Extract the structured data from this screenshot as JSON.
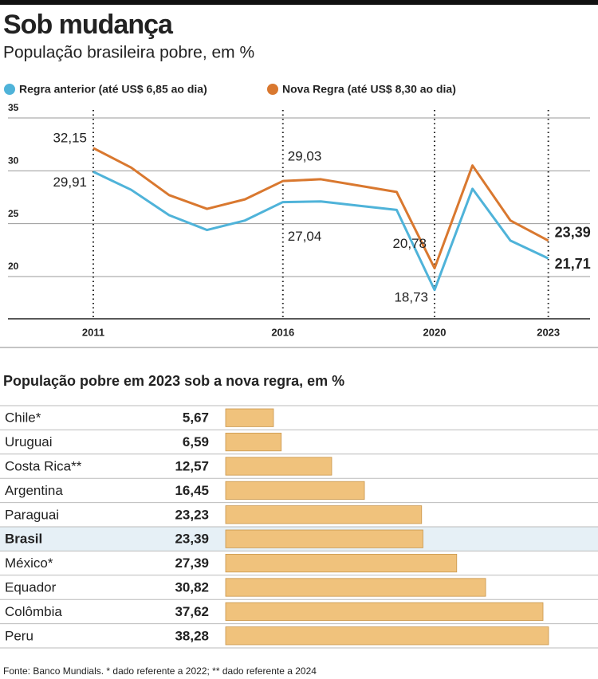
{
  "chart_data": [
    {
      "type": "line",
      "title": "Sob mudança",
      "subtitle": "População brasileira pobre, em %",
      "x": [
        2011,
        2012,
        2013,
        2014,
        2015,
        2016,
        2017,
        2018,
        2019,
        2020,
        2021,
        2022,
        2023
      ],
      "xlim": [
        2008.75,
        2024.1
      ],
      "xticks": [
        2011,
        2016,
        2020,
        2023
      ],
      "ylim": [
        16,
        35
      ],
      "yticks": [
        35,
        30,
        25,
        20
      ],
      "grid": true,
      "series": [
        {
          "name": "Regra anterior (até US$ 6,85 ao dia)",
          "color": "#4fb3d9",
          "values": [
            29.91,
            28.2,
            25.8,
            24.4,
            25.3,
            27.04,
            27.1,
            26.7,
            26.3,
            18.73,
            28.3,
            23.4,
            21.71
          ],
          "value_labels": [
            "29,91",
            null,
            null,
            null,
            null,
            "27,04",
            null,
            null,
            null,
            "18,73",
            null,
            null,
            "21,71"
          ]
        },
        {
          "name": "Nova Regra (até US$ 8,30 ao dia)",
          "color": "#d9782f",
          "values": [
            32.15,
            30.3,
            27.7,
            26.4,
            27.3,
            29.03,
            29.2,
            28.6,
            28.0,
            20.78,
            30.5,
            25.3,
            23.39
          ],
          "value_labels": [
            "32,15",
            null,
            null,
            null,
            null,
            "29,03",
            null,
            null,
            null,
            "20,78",
            null,
            null,
            "23,39"
          ]
        }
      ]
    },
    {
      "type": "hbar",
      "title": "População pobre em 2023 sob a nova regra, em %",
      "categories": [
        "Chile*",
        "Uruguai",
        "Costa Rica**",
        "Argentina",
        "Paraguai",
        "Brasil",
        "México*",
        "Equador",
        "Colômbia",
        "Peru"
      ],
      "values": [
        5.67,
        6.59,
        12.57,
        16.45,
        23.23,
        23.39,
        27.39,
        30.82,
        37.62,
        38.28
      ],
      "value_labels": [
        "5,67",
        "6,59",
        "12,57",
        "16,45",
        "23,23",
        "23,39",
        "27,39",
        "30,82",
        "37,62",
        "38,28"
      ],
      "color": "#f0c27c",
      "highlight": "Brasil"
    }
  ],
  "source": "Fonte: Banco Mundials. * dado referente a 2022; ** dado referente a 2024"
}
